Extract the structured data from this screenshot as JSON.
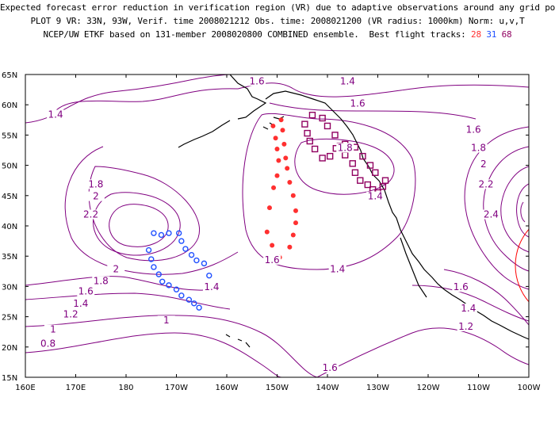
{
  "header": {
    "line1": "Expected forecast error reduction in verification region (VR) due to adaptive observations around any grid point.",
    "line2": "PLOT 9 VR: 33N, 93W, Verif. time 2008021212 Obs. time: 2008021200 (VR radius: 1000km) Norm: u,v,T",
    "line3_prefix": "NCEP/UW ETKF based on 131-member 2008020800 COMBINED ensemble.  Best flight tracks: ",
    "track_a": "28",
    "track_b": "31",
    "track_c": "68"
  },
  "colors": {
    "contour": "#800080",
    "track_a": "#ff3030",
    "track_b": "#1f4fff",
    "track_c": "#900060",
    "verification_circle": "#ff0000",
    "coast": "#000000"
  },
  "axes": {
    "lat_labels": [
      "65N",
      "60N",
      "55N",
      "50N",
      "45N",
      "40N",
      "35N",
      "30N",
      "25N",
      "20N",
      "15N"
    ],
    "lon_labels": [
      "160E",
      "170E",
      "180",
      "170W",
      "160W",
      "150W",
      "140W",
      "130W",
      "120W",
      "110W",
      "100W"
    ]
  },
  "contour_labels": [
    {
      "text": "1.6",
      "lon": -154,
      "lat": 63.5
    },
    {
      "text": "1.4",
      "lon": -136,
      "lat": 63.5
    },
    {
      "text": "1.6",
      "lon": -134,
      "lat": 59.8
    },
    {
      "text": "1.4",
      "lon": 166,
      "lat": 58
    },
    {
      "text": "1.6",
      "lon": -111,
      "lat": 55.5
    },
    {
      "text": "1.8",
      "lon": -110,
      "lat": 52.5
    },
    {
      "text": "2",
      "lon": -109,
      "lat": 49.8
    },
    {
      "text": "2.2",
      "lon": -108.5,
      "lat": 46.5
    },
    {
      "text": "2.4",
      "lon": -107.5,
      "lat": 41.5
    },
    {
      "text": "1.8",
      "lon": -136.5,
      "lat": 52.5
    },
    {
      "text": "1.4",
      "lon": -130.5,
      "lat": 44.5
    },
    {
      "text": "1.4",
      "lon": -138,
      "lat": 32.5
    },
    {
      "text": "1.6",
      "lon": -151,
      "lat": 34
    },
    {
      "text": "1.8",
      "lon": 174,
      "lat": 46.5
    },
    {
      "text": "2",
      "lon": 174,
      "lat": 44.5
    },
    {
      "text": "2.2",
      "lon": 173,
      "lat": 41.5
    },
    {
      "text": "2",
      "lon": 178,
      "lat": 32.5
    },
    {
      "text": "1.8",
      "lon": 175,
      "lat": 30.5
    },
    {
      "text": "1.6",
      "lon": 172,
      "lat": 28.8
    },
    {
      "text": "1.4",
      "lon": 171,
      "lat": 26.8
    },
    {
      "text": "1.2",
      "lon": 169,
      "lat": 25
    },
    {
      "text": "1.4",
      "lon": -163,
      "lat": 29.5
    },
    {
      "text": "1",
      "lon": -172,
      "lat": 24
    },
    {
      "text": "1",
      "lon": 165.5,
      "lat": 22.5
    },
    {
      "text": "0.8",
      "lon": 164.5,
      "lat": 20.2
    },
    {
      "text": "1.6",
      "lon": -139.5,
      "lat": 16.2
    },
    {
      "text": "1.6",
      "lon": -113.5,
      "lat": 29.5
    },
    {
      "text": "1.4",
      "lon": -112,
      "lat": 26
    },
    {
      "text": "1.2",
      "lon": -112.5,
      "lat": 23
    }
  ],
  "tracks": {
    "a": [
      [
        -150.8,
        56.5
      ],
      [
        -150.3,
        54.5
      ],
      [
        -150,
        52.7
      ],
      [
        -149.7,
        50.8
      ],
      [
        -150,
        48.3
      ],
      [
        -150.7,
        46.3
      ],
      [
        -151.5,
        43
      ],
      [
        -152,
        39
      ],
      [
        -151,
        36.8
      ],
      [
        -149.5,
        34.8
      ],
      [
        -147.5,
        36.5
      ],
      [
        -146.8,
        38.5
      ],
      [
        -146.3,
        40.5
      ],
      [
        -146.3,
        42.5
      ],
      [
        -146.8,
        45
      ],
      [
        -147.5,
        47.2
      ],
      [
        -148,
        49.5
      ],
      [
        -148.3,
        51.2
      ],
      [
        -148.6,
        53.5
      ],
      [
        -148.9,
        55.8
      ],
      [
        -149.2,
        57.5
      ]
    ],
    "b": [
      [
        -174.5,
        38.8
      ],
      [
        -173,
        38.5
      ],
      [
        -171.5,
        38.8
      ],
      [
        -169.5,
        38.8
      ],
      [
        -169,
        37.5
      ],
      [
        -168.2,
        36.2
      ],
      [
        -167,
        35.2
      ],
      [
        -166,
        34.3
      ],
      [
        -164.5,
        33.8
      ],
      [
        -163.5,
        31.8
      ],
      [
        -163.3,
        29.8
      ],
      [
        -175.5,
        36
      ],
      [
        -175,
        34.5
      ],
      [
        -174.5,
        33.2
      ],
      [
        -173.5,
        32
      ],
      [
        -172.8,
        30.8
      ],
      [
        -171.5,
        30.2
      ],
      [
        -170,
        29.5
      ],
      [
        -169,
        28.5
      ],
      [
        -167.5,
        27.8
      ],
      [
        -166.5,
        27.2
      ],
      [
        -165.5,
        26.5
      ]
    ],
    "c": [
      [
        -144.5,
        56.8
      ],
      [
        -143,
        58.3
      ],
      [
        -141,
        57.8
      ],
      [
        -140,
        56.5
      ],
      [
        -138.5,
        55
      ],
      [
        -137.5,
        53.2
      ],
      [
        -136.5,
        51.7
      ],
      [
        -135,
        50.3
      ],
      [
        -134.5,
        48.8
      ],
      [
        -133.5,
        47.5
      ],
      [
        -132,
        46.8
      ],
      [
        -131,
        46
      ],
      [
        -130,
        45.5
      ],
      [
        -129,
        46.5
      ],
      [
        -128.5,
        47.5
      ],
      [
        -130.5,
        48.8
      ],
      [
        -131.5,
        50
      ],
      [
        -133,
        51.5
      ],
      [
        -134.5,
        53
      ],
      [
        -136.5,
        53.5
      ],
      [
        -138.3,
        52.8
      ],
      [
        -139.5,
        51.5
      ],
      [
        -141,
        51.2
      ],
      [
        -142.5,
        52.7
      ],
      [
        -143.5,
        54
      ],
      [
        -144,
        55.3
      ]
    ]
  }
}
